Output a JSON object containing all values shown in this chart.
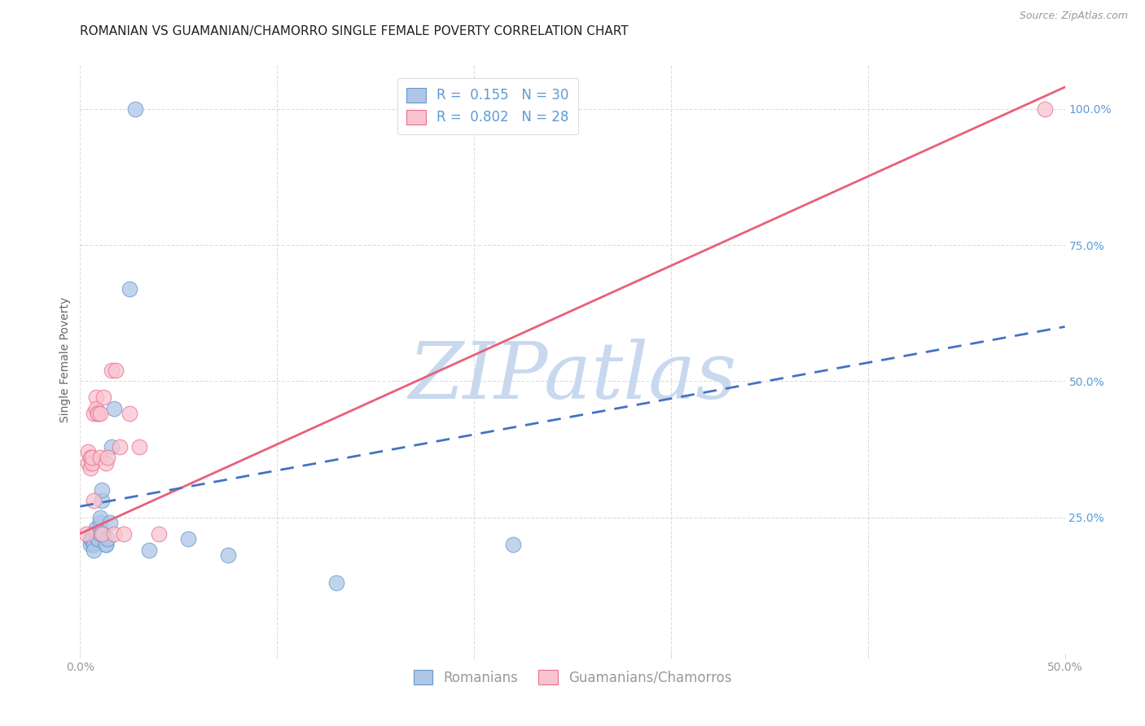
{
  "title": "ROMANIAN VS GUAMANIAN/CHAMORRO SINGLE FEMALE POVERTY CORRELATION CHART",
  "source": "Source: ZipAtlas.com",
  "ylabel": "Single Female Poverty",
  "legend_labels": [
    "Romanians",
    "Guamanians/Chamorros"
  ],
  "R_blue": "0.155",
  "N_blue": "30",
  "R_pink": "0.802",
  "N_pink": "28",
  "blue_fill_color": "#AEC6E8",
  "pink_fill_color": "#F9C4CF",
  "blue_edge_color": "#6699CC",
  "pink_edge_color": "#E87090",
  "blue_line_color": "#4472C4",
  "pink_line_color": "#E8607A",
  "watermark_color": "#C8D8EE",
  "blue_scatter_x": [
    0.005,
    0.005,
    0.006,
    0.006,
    0.007,
    0.007,
    0.007,
    0.008,
    0.008,
    0.009,
    0.009,
    0.01,
    0.01,
    0.01,
    0.011,
    0.011,
    0.012,
    0.013,
    0.013,
    0.014,
    0.015,
    0.016,
    0.017,
    0.025,
    0.028,
    0.035,
    0.055,
    0.075,
    0.13,
    0.22
  ],
  "blue_scatter_y": [
    0.2,
    0.21,
    0.22,
    0.21,
    0.2,
    0.2,
    0.19,
    0.23,
    0.22,
    0.21,
    0.21,
    0.22,
    0.24,
    0.25,
    0.28,
    0.3,
    0.22,
    0.2,
    0.2,
    0.21,
    0.24,
    0.38,
    0.45,
    0.67,
    1.0,
    0.19,
    0.21,
    0.18,
    0.13,
    0.2
  ],
  "pink_scatter_x": [
    0.003,
    0.004,
    0.004,
    0.005,
    0.005,
    0.006,
    0.006,
    0.007,
    0.007,
    0.008,
    0.008,
    0.009,
    0.009,
    0.01,
    0.01,
    0.011,
    0.012,
    0.013,
    0.014,
    0.016,
    0.017,
    0.018,
    0.02,
    0.022,
    0.025,
    0.03,
    0.04,
    0.49
  ],
  "pink_scatter_y": [
    0.22,
    0.35,
    0.37,
    0.34,
    0.36,
    0.35,
    0.36,
    0.28,
    0.44,
    0.47,
    0.45,
    0.44,
    0.44,
    0.36,
    0.44,
    0.22,
    0.47,
    0.35,
    0.36,
    0.52,
    0.22,
    0.52,
    0.38,
    0.22,
    0.44,
    0.38,
    0.22,
    1.0
  ],
  "xlim": [
    0.0,
    0.5
  ],
  "ylim": [
    0.0,
    1.08
  ],
  "blue_trend_x0": 0.0,
  "blue_trend_x1": 0.5,
  "blue_trend_y0": 0.27,
  "blue_trend_y1": 0.6,
  "pink_trend_x0": 0.0,
  "pink_trend_x1": 0.5,
  "pink_trend_y0": 0.22,
  "pink_trend_y1": 1.04,
  "ytick_vals": [
    0.25,
    0.5,
    0.75,
    1.0
  ],
  "ytick_labels": [
    "25.0%",
    "50.0%",
    "75.0%",
    "100.0%"
  ],
  "xtick_vals": [
    0.0,
    0.1,
    0.2,
    0.3,
    0.4,
    0.5
  ],
  "xtick_edge_labels": [
    "0.0%",
    "50.0%"
  ],
  "background_color": "#FFFFFF",
  "grid_color": "#DDDDDD",
  "title_color": "#222222",
  "ylabel_color": "#666666",
  "ytick_color": "#5B9BD5",
  "xtick_color": "#999999",
  "source_color": "#999999",
  "legend_box_color": "#DDDDDD",
  "legend_text_color": "#5B9BD5",
  "title_fontsize": 11,
  "ylabel_fontsize": 10,
  "tick_fontsize": 10,
  "legend_fontsize": 12,
  "source_fontsize": 9,
  "scatter_size": 180,
  "scatter_alpha": 0.75,
  "scatter_linewidth": 0.8,
  "trend_linewidth": 2.0
}
